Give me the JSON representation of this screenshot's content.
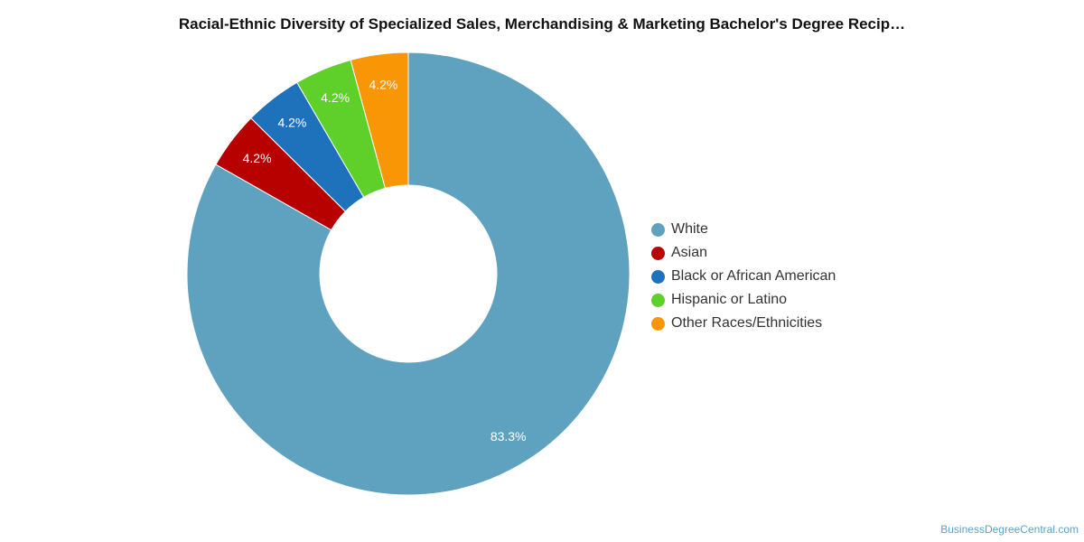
{
  "chart_data": {
    "type": "pie",
    "title": "Racial-Ethnic Diversity of Specialized Sales, Merchandising & Marketing Bachelor's Degree Recip…",
    "donut": true,
    "legend_position": "right",
    "slices": [
      {
        "label": "White",
        "value": 83.3,
        "value_label": "83.3%",
        "color": "#5fa2c0"
      },
      {
        "label": "Asian",
        "value": 4.2,
        "value_label": "4.2%",
        "color": "#b70000"
      },
      {
        "label": "Black or African American",
        "value": 4.2,
        "value_label": "4.2%",
        "color": "#1e72bb"
      },
      {
        "label": "Hispanic or Latino",
        "value": 4.2,
        "value_label": "4.2%",
        "color": "#5fcf2a"
      },
      {
        "label": "Other Races/Ethnicities",
        "value": 4.2,
        "value_label": "4.2%",
        "color": "#f89606"
      }
    ]
  },
  "credit": "BusinessDegreeCentral.com"
}
